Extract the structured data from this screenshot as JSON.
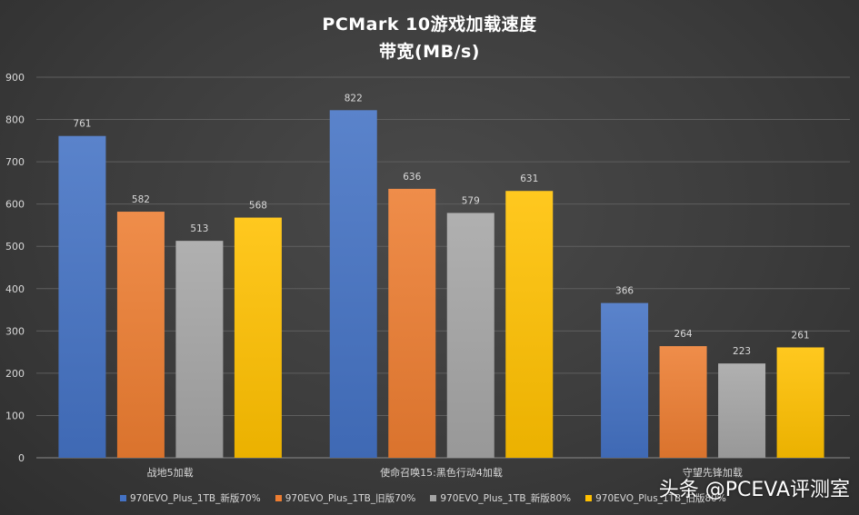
{
  "chart_data": {
    "type": "bar",
    "title": "PCMark  10游戏加载速度",
    "subtitle": "带宽(MB/s)",
    "categories": [
      "战地5加载",
      "使命召唤15:黑色行动4加载",
      "守望先锋加载"
    ],
    "series": [
      {
        "name": "970EVO_Plus_1TB_新版70%",
        "values": [
          761,
          822,
          366
        ],
        "color": "#4472c4"
      },
      {
        "name": "970EVO_Plus_1TB_旧版70%",
        "values": [
          582,
          636,
          264
        ],
        "color": "#ed7d31"
      },
      {
        "name": "970EVO_Plus_1TB_新版80%",
        "values": [
          513,
          579,
          223
        ],
        "color": "#a5a5a5"
      },
      {
        "name": "970EVO_Plus_1TB_旧版80%",
        "values": [
          568,
          631,
          261
        ],
        "color": "#ffc000"
      }
    ],
    "ylim": [
      0,
      900
    ],
    "yticks": [
      0,
      100,
      200,
      300,
      400,
      500,
      600,
      700,
      800,
      900
    ],
    "grid": true,
    "legend_position": "bottom"
  },
  "watermark": "头条 @PCEVA评测室"
}
